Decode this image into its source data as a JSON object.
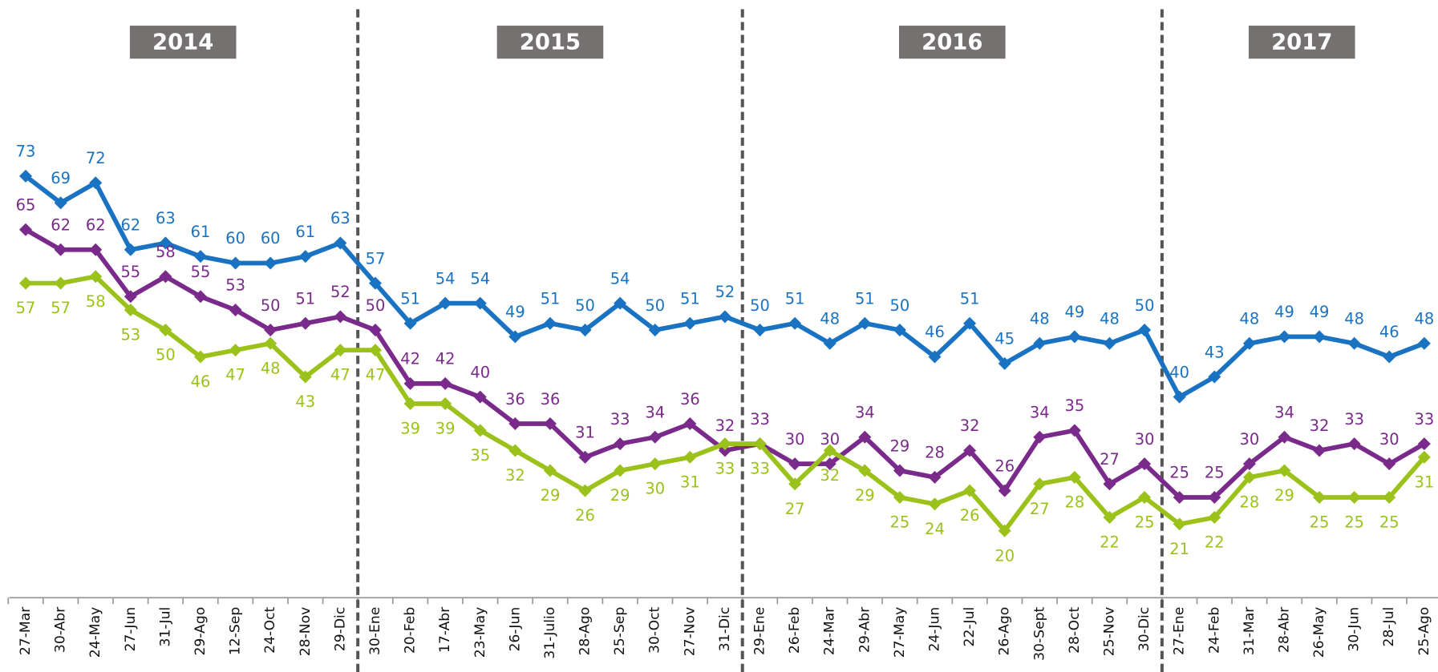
{
  "chart_data": {
    "type": "line",
    "categories": [
      "27-Mar",
      "30-Abr",
      "24-May",
      "27-Jun",
      "31-Jul",
      "29-Ago",
      "12-Sep",
      "24-Oct",
      "28-Nov",
      "29-Dic",
      "30-Ene",
      "20-Feb",
      "17-Abr",
      "23-May",
      "26-Jun",
      "31-Julio",
      "28-Ago",
      "25-Sep",
      "30-Oct",
      "27-Nov",
      "31-Dic",
      "29-Ene",
      "26-Feb",
      "24-Mar",
      "29-Abr",
      "27-May",
      "24-Jun",
      "22-Jul",
      "26-Ago",
      "30-Sept",
      "28-Oct",
      "25-Nov",
      "30-Dic",
      "27-Ene",
      "24-Feb",
      "31-Mar",
      "28-Abr",
      "26-May",
      "30-Jun",
      "28-Jul",
      "25-Ago"
    ],
    "year_groups": [
      {
        "label": "2014",
        "count": 10
      },
      {
        "label": "2015",
        "count": 11
      },
      {
        "label": "2016",
        "count": 12
      },
      {
        "label": "2017",
        "count": 8
      }
    ],
    "series": [
      {
        "color": "#1a72c2",
        "values": [
          73,
          69,
          72,
          62,
          63,
          61,
          60,
          60,
          61,
          63,
          57,
          51,
          54,
          54,
          49,
          51,
          50,
          54,
          50,
          51,
          52,
          50,
          51,
          48,
          51,
          50,
          46,
          51,
          45,
          48,
          49,
          48,
          50,
          40,
          43,
          48,
          49,
          49,
          48,
          46,
          48
        ]
      },
      {
        "color": "#7a2a8a",
        "values": [
          65,
          62,
          62,
          55,
          58,
          55,
          53,
          50,
          51,
          52,
          50,
          42,
          42,
          40,
          36,
          36,
          31,
          33,
          34,
          36,
          32,
          33,
          30,
          30,
          34,
          29,
          28,
          32,
          26,
          34,
          35,
          27,
          30,
          25,
          25,
          30,
          34,
          32,
          33,
          30,
          33
        ]
      },
      {
        "color": "#9bc21a",
        "values": [
          57,
          57,
          58,
          53,
          50,
          46,
          47,
          48,
          43,
          47,
          47,
          39,
          39,
          35,
          32,
          29,
          26,
          29,
          30,
          31,
          33,
          33,
          27,
          32,
          29,
          25,
          24,
          26,
          20,
          27,
          28,
          22,
          25,
          21,
          22,
          28,
          29,
          25,
          25,
          25,
          31
        ]
      }
    ],
    "ylim": [
      10,
      100
    ],
    "grid": false
  }
}
